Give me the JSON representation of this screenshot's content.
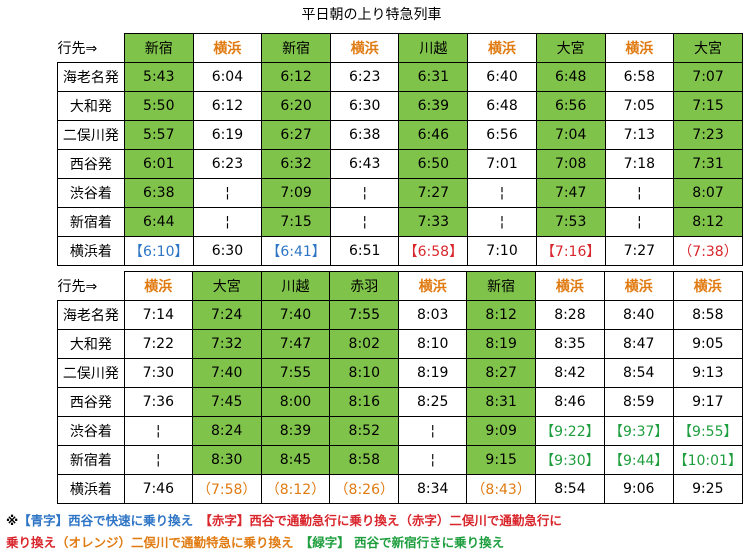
{
  "title": "平日朝の上り特急列車",
  "tables": [
    {
      "header": "行先⇒",
      "columns": [
        {
          "dest": "新宿",
          "kind": "green"
        },
        {
          "dest": "横浜",
          "kind": "orange"
        },
        {
          "dest": "新宿",
          "kind": "green"
        },
        {
          "dest": "横浜",
          "kind": "orange"
        },
        {
          "dest": "川越",
          "kind": "green"
        },
        {
          "dest": "横浜",
          "kind": "orange"
        },
        {
          "dest": "大宮",
          "kind": "green"
        },
        {
          "dest": "横浜",
          "kind": "orange"
        },
        {
          "dest": "大宮",
          "kind": "green"
        }
      ],
      "rows": [
        {
          "label": "海老名発",
          "cells": [
            {
              "t": "5:43"
            },
            {
              "t": "6:04"
            },
            {
              "t": "6:12"
            },
            {
              "t": "6:23"
            },
            {
              "t": "6:31"
            },
            {
              "t": "6:40"
            },
            {
              "t": "6:48"
            },
            {
              "t": "6:58"
            },
            {
              "t": "7:07"
            }
          ]
        },
        {
          "label": "大和発",
          "cells": [
            {
              "t": "5:50"
            },
            {
              "t": "6:12"
            },
            {
              "t": "6:20"
            },
            {
              "t": "6:30"
            },
            {
              "t": "6:39"
            },
            {
              "t": "6:48"
            },
            {
              "t": "6:56"
            },
            {
              "t": "7:05"
            },
            {
              "t": "7:15"
            }
          ]
        },
        {
          "label": "二俣川発",
          "cells": [
            {
              "t": "5:57"
            },
            {
              "t": "6:19"
            },
            {
              "t": "6:27"
            },
            {
              "t": "6:38"
            },
            {
              "t": "6:46"
            },
            {
              "t": "6:56"
            },
            {
              "t": "7:04"
            },
            {
              "t": "7:13"
            },
            {
              "t": "7:23"
            }
          ]
        },
        {
          "label": "西谷発",
          "cells": [
            {
              "t": "6:01"
            },
            {
              "t": "6:23"
            },
            {
              "t": "6:32"
            },
            {
              "t": "6:43"
            },
            {
              "t": "6:50"
            },
            {
              "t": "7:01"
            },
            {
              "t": "7:08"
            },
            {
              "t": "7:18"
            },
            {
              "t": "7:31"
            }
          ]
        },
        {
          "label": "渋谷着",
          "cells": [
            {
              "t": "6:38"
            },
            {
              "t": "¦"
            },
            {
              "t": "7:09"
            },
            {
              "t": "¦"
            },
            {
              "t": "7:27"
            },
            {
              "t": "¦"
            },
            {
              "t": "7:47"
            },
            {
              "t": "¦"
            },
            {
              "t": "8:07"
            }
          ]
        },
        {
          "label": "新宿着",
          "cells": [
            {
              "t": "6:44"
            },
            {
              "t": "¦"
            },
            {
              "t": "7:15"
            },
            {
              "t": "¦"
            },
            {
              "t": "7:33"
            },
            {
              "t": "¦"
            },
            {
              "t": "7:53"
            },
            {
              "t": "¦"
            },
            {
              "t": "8:12"
            }
          ]
        },
        {
          "label": "横浜着",
          "last": true,
          "cells": [
            {
              "t": "【6:10】",
              "c": "blue"
            },
            {
              "t": "6:30"
            },
            {
              "t": "【6:41】",
              "c": "blue"
            },
            {
              "t": "6:51"
            },
            {
              "t": "【6:58】",
              "c": "red"
            },
            {
              "t": "7:10"
            },
            {
              "t": "【7:16】",
              "c": "red"
            },
            {
              "t": "7:27"
            },
            {
              "t": "（7:38）",
              "c": "red"
            }
          ]
        }
      ]
    },
    {
      "header": "行先⇒",
      "columns": [
        {
          "dest": "横浜",
          "kind": "orange"
        },
        {
          "dest": "大宮",
          "kind": "green"
        },
        {
          "dest": "川越",
          "kind": "green"
        },
        {
          "dest": "赤羽",
          "kind": "green"
        },
        {
          "dest": "横浜",
          "kind": "orange"
        },
        {
          "dest": "新宿",
          "kind": "green"
        },
        {
          "dest": "横浜",
          "kind": "orange"
        },
        {
          "dest": "横浜",
          "kind": "orange"
        },
        {
          "dest": "横浜",
          "kind": "orange"
        }
      ],
      "rows": [
        {
          "label": "海老名発",
          "cells": [
            {
              "t": "7:14"
            },
            {
              "t": "7:24"
            },
            {
              "t": "7:40"
            },
            {
              "t": "7:55"
            },
            {
              "t": "8:03"
            },
            {
              "t": "8:12"
            },
            {
              "t": "8:28"
            },
            {
              "t": "8:40"
            },
            {
              "t": "8:58"
            }
          ]
        },
        {
          "label": "大和発",
          "cells": [
            {
              "t": "7:22"
            },
            {
              "t": "7:32"
            },
            {
              "t": "7:47"
            },
            {
              "t": "8:02"
            },
            {
              "t": "8:10"
            },
            {
              "t": "8:19"
            },
            {
              "t": "8:35"
            },
            {
              "t": "8:47"
            },
            {
              "t": "9:05"
            }
          ]
        },
        {
          "label": "二俣川発",
          "cells": [
            {
              "t": "7:30"
            },
            {
              "t": "7:40"
            },
            {
              "t": "7:55"
            },
            {
              "t": "8:10"
            },
            {
              "t": "8:19"
            },
            {
              "t": "8:27"
            },
            {
              "t": "8:42"
            },
            {
              "t": "8:54"
            },
            {
              "t": "9:13"
            }
          ]
        },
        {
          "label": "西谷発",
          "cells": [
            {
              "t": "7:36"
            },
            {
              "t": "7:45"
            },
            {
              "t": "8:00"
            },
            {
              "t": "8:16"
            },
            {
              "t": "8:25"
            },
            {
              "t": "8:31"
            },
            {
              "t": "8:46"
            },
            {
              "t": "8:59"
            },
            {
              "t": "9:17"
            }
          ]
        },
        {
          "label": "渋谷着",
          "cells": [
            {
              "t": "¦"
            },
            {
              "t": "8:24"
            },
            {
              "t": "8:39"
            },
            {
              "t": "8:52"
            },
            {
              "t": "¦"
            },
            {
              "t": "9:09"
            },
            {
              "t": "【9:22】",
              "c": "greentxt"
            },
            {
              "t": "【9:37】",
              "c": "greentxt"
            },
            {
              "t": "【9:55】",
              "c": "greentxt"
            }
          ]
        },
        {
          "label": "新宿着",
          "cells": [
            {
              "t": "¦"
            },
            {
              "t": "8:30"
            },
            {
              "t": "8:45"
            },
            {
              "t": "8:58"
            },
            {
              "t": "¦"
            },
            {
              "t": "9:15"
            },
            {
              "t": "【9:30】",
              "c": "greentxt"
            },
            {
              "t": "【9:44】",
              "c": "greentxt"
            },
            {
              "t": "【10:01】",
              "c": "greentxt"
            }
          ]
        },
        {
          "label": "横浜着",
          "last": true,
          "cells": [
            {
              "t": "7:46"
            },
            {
              "t": "（7:58）",
              "c": "orange"
            },
            {
              "t": "（8:12）",
              "c": "orange"
            },
            {
              "t": "（8:26）",
              "c": "orange"
            },
            {
              "t": "8:34"
            },
            {
              "t": "（8:43）",
              "c": "orange"
            },
            {
              "t": "8:54"
            },
            {
              "t": "9:06"
            },
            {
              "t": "9:25"
            }
          ]
        }
      ]
    }
  ],
  "notes": {
    "line1": [
      {
        "t": "※",
        "c": ""
      },
      {
        "t": "【青字】西谷で快速に乗り換え",
        "c": "blue"
      },
      {
        "t": "　【赤字】西谷で通勤急行に乗り換え（赤字）二俣川で通勤急行に",
        "c": "red"
      }
    ],
    "line2": [
      {
        "t": "乗り換え",
        "c": "red"
      },
      {
        "t": "（オレンジ）二俣川で通勤特急に乗り換え",
        "c": "orange"
      },
      {
        "t": "　【緑字】 西谷で新宿行きに乗り換え",
        "c": "greentxt"
      }
    ]
  },
  "colors": {
    "green_fill": "#7fc34a",
    "orange_text": "#e07b12",
    "blue_text": "#2e75c6",
    "red_text": "#d9262c",
    "green_text": "#1e9e3e"
  }
}
